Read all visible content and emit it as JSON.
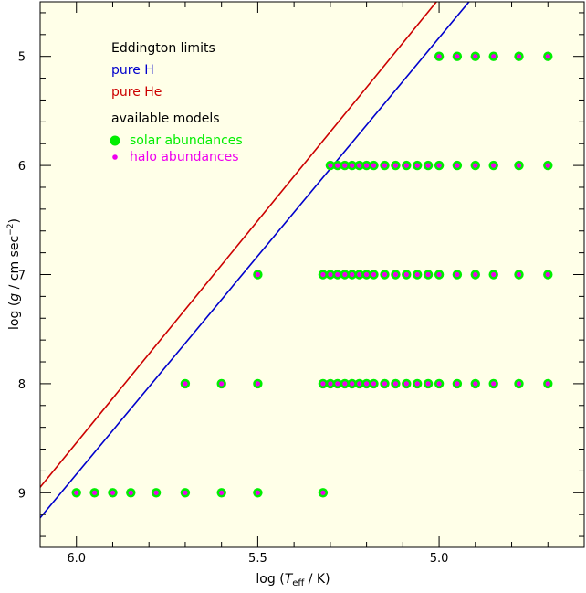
{
  "chart_data": {
    "type": "scatter",
    "xlabel_parts": {
      "pre": "log (",
      "sym": "T",
      "sub": "eff",
      "post": " / K)"
    },
    "ylabel_parts": {
      "pre": "log (",
      "sym": "g",
      "mid": " / cm sec",
      "sup": "−2",
      "post": ")"
    },
    "xlim": [
      6.1,
      4.6
    ],
    "ylim": [
      4.5,
      9.5
    ],
    "x_ticks_major": [
      6.0,
      5.5,
      5.0
    ],
    "x_tick_labels": [
      "6.0",
      "5.5",
      "5.0"
    ],
    "y_ticks_major": [
      5,
      6,
      7,
      8,
      9
    ],
    "y_tick_labels": [
      "5",
      "6",
      "7",
      "8",
      "9"
    ],
    "grid": false,
    "legend_items": [
      {
        "id": "eddington",
        "text": "Eddington limits",
        "color": "#000000"
      },
      {
        "id": "pure-h",
        "text": "pure H",
        "color": "#0000cc"
      },
      {
        "id": "pure-he",
        "text": "pure He",
        "color": "#cc0000"
      },
      {
        "id": "available",
        "text": "available models",
        "color": "#000000"
      },
      {
        "id": "solar",
        "text": "solar abundances",
        "color": "#00ee00"
      },
      {
        "id": "halo",
        "text": "halo abundances",
        "color": "#ee00ee"
      }
    ],
    "lines": [
      {
        "name": "pure H",
        "color": "#0000cc",
        "x": [
          6.11,
          4.9
        ],
        "y": [
          9.27,
          4.43
        ]
      },
      {
        "name": "pure He",
        "color": "#cc0000",
        "x": [
          6.11,
          4.99
        ],
        "y": [
          8.99,
          4.43
        ]
      }
    ],
    "series": [
      {
        "name": "solar abundances",
        "color": "#00ee00",
        "points": [
          [
            5.0,
            5
          ],
          [
            4.95,
            5
          ],
          [
            4.9,
            5
          ],
          [
            4.85,
            5
          ],
          [
            4.78,
            5
          ],
          [
            4.7,
            5
          ],
          [
            5.3,
            6
          ],
          [
            5.28,
            6
          ],
          [
            5.26,
            6
          ],
          [
            5.24,
            6
          ],
          [
            5.22,
            6
          ],
          [
            5.2,
            6
          ],
          [
            5.18,
            6
          ],
          [
            5.15,
            6
          ],
          [
            5.12,
            6
          ],
          [
            5.09,
            6
          ],
          [
            5.06,
            6
          ],
          [
            5.03,
            6
          ],
          [
            5.0,
            6
          ],
          [
            4.95,
            6
          ],
          [
            4.9,
            6
          ],
          [
            4.85,
            6
          ],
          [
            4.78,
            6
          ],
          [
            4.7,
            6
          ],
          [
            5.5,
            7
          ],
          [
            5.32,
            7
          ],
          [
            5.3,
            7
          ],
          [
            5.28,
            7
          ],
          [
            5.26,
            7
          ],
          [
            5.24,
            7
          ],
          [
            5.22,
            7
          ],
          [
            5.2,
            7
          ],
          [
            5.18,
            7
          ],
          [
            5.15,
            7
          ],
          [
            5.12,
            7
          ],
          [
            5.09,
            7
          ],
          [
            5.06,
            7
          ],
          [
            5.03,
            7
          ],
          [
            5.0,
            7
          ],
          [
            4.95,
            7
          ],
          [
            4.9,
            7
          ],
          [
            4.85,
            7
          ],
          [
            4.78,
            7
          ],
          [
            4.7,
            7
          ],
          [
            5.7,
            8
          ],
          [
            5.6,
            8
          ],
          [
            5.5,
            8
          ],
          [
            5.32,
            8
          ],
          [
            5.3,
            8
          ],
          [
            5.28,
            8
          ],
          [
            5.26,
            8
          ],
          [
            5.24,
            8
          ],
          [
            5.22,
            8
          ],
          [
            5.2,
            8
          ],
          [
            5.18,
            8
          ],
          [
            5.15,
            8
          ],
          [
            5.12,
            8
          ],
          [
            5.09,
            8
          ],
          [
            5.06,
            8
          ],
          [
            5.03,
            8
          ],
          [
            5.0,
            8
          ],
          [
            4.95,
            8
          ],
          [
            4.9,
            8
          ],
          [
            4.85,
            8
          ],
          [
            4.78,
            8
          ],
          [
            4.7,
            8
          ],
          [
            6.0,
            9
          ],
          [
            5.95,
            9
          ],
          [
            5.9,
            9
          ],
          [
            5.85,
            9
          ],
          [
            5.78,
            9
          ],
          [
            5.7,
            9
          ],
          [
            5.6,
            9
          ],
          [
            5.5,
            9
          ],
          [
            5.32,
            9
          ]
        ]
      },
      {
        "name": "halo abundances",
        "color": "#ee00ee",
        "points": [
          [
            5.0,
            5
          ],
          [
            4.95,
            5
          ],
          [
            4.9,
            5
          ],
          [
            4.85,
            5
          ],
          [
            4.78,
            5
          ],
          [
            4.7,
            5
          ],
          [
            5.3,
            6
          ],
          [
            5.28,
            6
          ],
          [
            5.26,
            6
          ],
          [
            5.24,
            6
          ],
          [
            5.22,
            6
          ],
          [
            5.2,
            6
          ],
          [
            5.18,
            6
          ],
          [
            5.15,
            6
          ],
          [
            5.12,
            6
          ],
          [
            5.09,
            6
          ],
          [
            5.06,
            6
          ],
          [
            5.03,
            6
          ],
          [
            5.0,
            6
          ],
          [
            4.95,
            6
          ],
          [
            4.9,
            6
          ],
          [
            4.85,
            6
          ],
          [
            4.78,
            6
          ],
          [
            4.7,
            6
          ],
          [
            5.5,
            7
          ],
          [
            5.32,
            7
          ],
          [
            5.3,
            7
          ],
          [
            5.28,
            7
          ],
          [
            5.26,
            7
          ],
          [
            5.24,
            7
          ],
          [
            5.22,
            7
          ],
          [
            5.2,
            7
          ],
          [
            5.18,
            7
          ],
          [
            5.15,
            7
          ],
          [
            5.12,
            7
          ],
          [
            5.09,
            7
          ],
          [
            5.06,
            7
          ],
          [
            5.03,
            7
          ],
          [
            5.0,
            7
          ],
          [
            4.95,
            7
          ],
          [
            4.9,
            7
          ],
          [
            4.85,
            7
          ],
          [
            4.78,
            7
          ],
          [
            4.7,
            7
          ],
          [
            5.7,
            8
          ],
          [
            5.6,
            8
          ],
          [
            5.5,
            8
          ],
          [
            5.32,
            8
          ],
          [
            5.3,
            8
          ],
          [
            5.28,
            8
          ],
          [
            5.26,
            8
          ],
          [
            5.24,
            8
          ],
          [
            5.22,
            8
          ],
          [
            5.2,
            8
          ],
          [
            5.18,
            8
          ],
          [
            5.15,
            8
          ],
          [
            5.12,
            8
          ],
          [
            5.09,
            8
          ],
          [
            5.06,
            8
          ],
          [
            5.03,
            8
          ],
          [
            5.0,
            8
          ],
          [
            4.95,
            8
          ],
          [
            4.9,
            8
          ],
          [
            4.85,
            8
          ],
          [
            4.78,
            8
          ],
          [
            4.7,
            8
          ],
          [
            6.0,
            9
          ],
          [
            5.95,
            9
          ],
          [
            5.9,
            9
          ],
          [
            5.85,
            9
          ],
          [
            5.78,
            9
          ],
          [
            5.7,
            9
          ],
          [
            5.6,
            9
          ],
          [
            5.5,
            9
          ],
          [
            5.32,
            9
          ]
        ]
      }
    ],
    "background_color": "#ffffe8",
    "axis_color": "#000000"
  }
}
